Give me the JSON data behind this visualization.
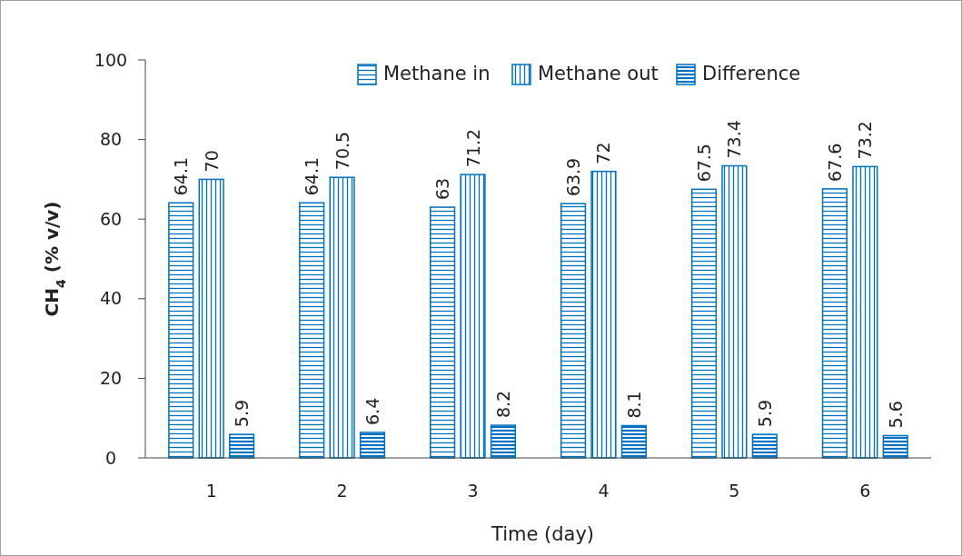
{
  "chart_data": {
    "type": "bar",
    "xlabel": "Time (day)",
    "ylabel": "CH$_{4}$ (% v/v)",
    "categories": [
      "1",
      "2",
      "3",
      "4",
      "5",
      "6"
    ],
    "series": [
      {
        "name": "Methane in",
        "color": "#0070c0",
        "values": [
          64.1,
          64.1,
          63,
          63.9,
          67.5,
          67.6
        ]
      },
      {
        "name": "Methane out",
        "color": "#0070c0",
        "values": [
          70,
          70.5,
          71.2,
          72,
          73.4,
          73.2
        ]
      },
      {
        "name": "Difference",
        "color": "#0070c0",
        "values": [
          5.9,
          6.4,
          8.2,
          8.1,
          5.9,
          5.6
        ]
      }
    ],
    "ylim": [
      0,
      100
    ],
    "yticks": [
      0,
      20,
      40,
      60,
      80,
      100
    ],
    "grid": false,
    "legend": "top right",
    "data_labels": true
  }
}
